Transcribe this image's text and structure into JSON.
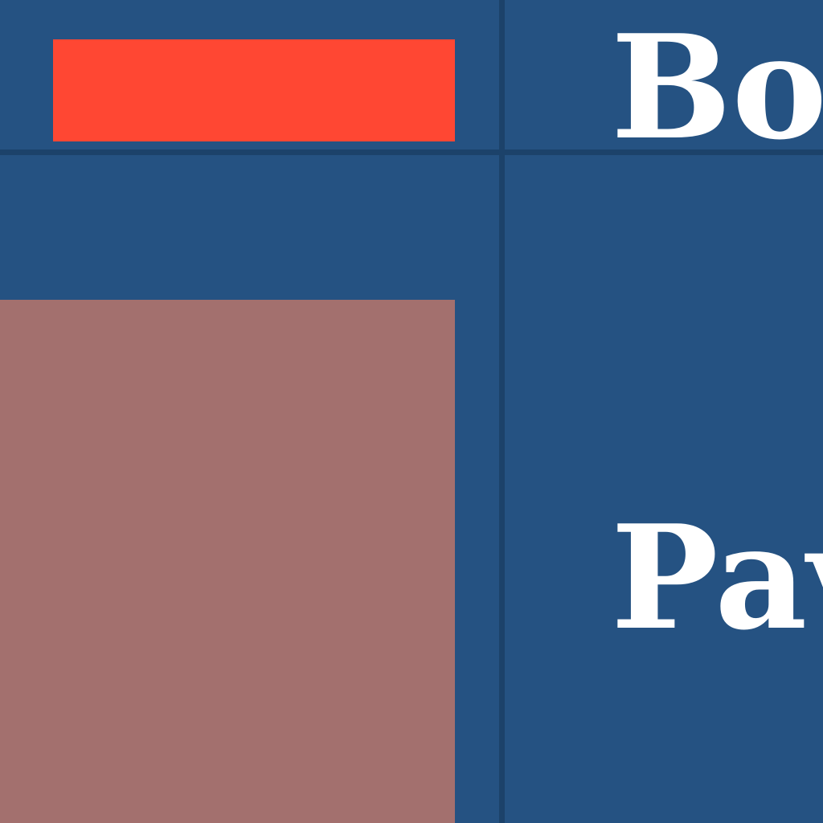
{
  "rows": [
    {
      "label": "Bor",
      "swatch_color": "#ff4733"
    },
    {
      "label": "Pav",
      "swatch_color": "#a3706e"
    }
  ],
  "colors": {
    "background": "#255282",
    "grid_line": "#1c426a",
    "text": "#ffffff"
  }
}
